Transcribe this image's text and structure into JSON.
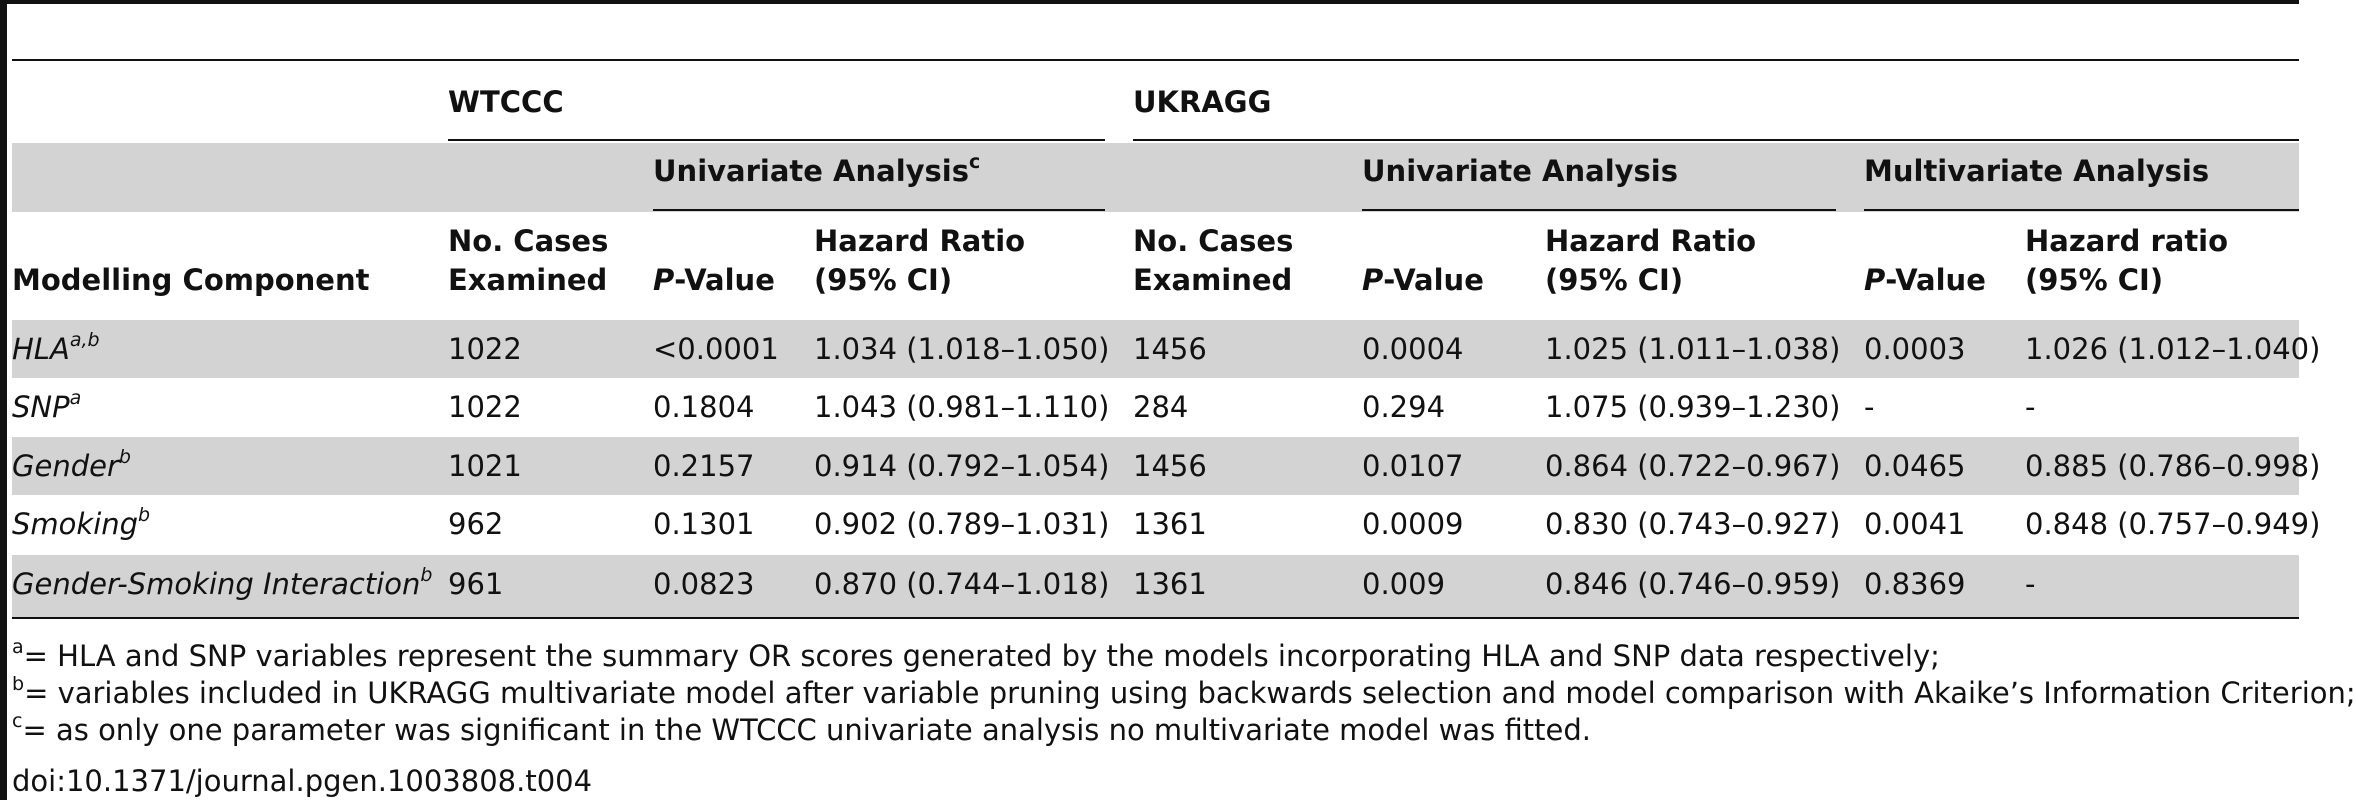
{
  "groups": {
    "wtccc": "WTCCC",
    "ukragg": "UKRAGG"
  },
  "subgroups": {
    "wtccc_univariate": "Univariate Analysis",
    "wtccc_univariate_sup": "c",
    "ukragg_univariate": "Univariate Analysis",
    "ukragg_multivariate": "Multivariate Analysis"
  },
  "headers": {
    "component": "Modelling Component",
    "cases_1": "No. Cases",
    "cases_2": "Examined",
    "p_italic": "P",
    "p_rest": "-Value",
    "hr_1": "Hazard Ratio",
    "hr_2": "(95% CI)",
    "hr_lower_1": "Hazard ratio",
    "hr_lower_2": "(95% CI)"
  },
  "rows": [
    {
      "component": "HLA",
      "sup": "a,b",
      "wt_cases": "1022",
      "wt_p": "<0.0001",
      "wt_hr": "1.034 (1.018–1.050)",
      "uk_cases": "1456",
      "uk_p": "0.0004",
      "uk_hr": "1.025 (1.011–1.038)",
      "mv_p": "0.0003",
      "mv_hr": "1.026 (1.012–1.040)"
    },
    {
      "component": "SNP",
      "sup": "a",
      "wt_cases": "1022",
      "wt_p": "0.1804",
      "wt_hr": "1.043 (0.981–1.110)",
      "uk_cases": "284",
      "uk_p": "0.294",
      "uk_hr": "1.075 (0.939–1.230)",
      "mv_p": "-",
      "mv_hr": "-"
    },
    {
      "component": "Gender",
      "sup": "b",
      "wt_cases": "1021",
      "wt_p": "0.2157",
      "wt_hr": "0.914 (0.792–1.054)",
      "uk_cases": "1456",
      "uk_p": "0.0107",
      "uk_hr": "0.864 (0.722–0.967)",
      "mv_p": "0.0465",
      "mv_hr": "0.885 (0.786–0.998)"
    },
    {
      "component": "Smoking",
      "sup": "b",
      "wt_cases": "962",
      "wt_p": "0.1301",
      "wt_hr": "0.902 (0.789–1.031)",
      "uk_cases": "1361",
      "uk_p": "0.0009",
      "uk_hr": "0.830 (0.743–0.927)",
      "mv_p": "0.0041",
      "mv_hr": "0.848 (0.757–0.949)"
    },
    {
      "component": "Gender-Smoking Interaction",
      "sup": "b",
      "wt_cases": "961",
      "wt_p": "0.0823",
      "wt_hr": "0.870 (0.744–1.018)",
      "uk_cases": "1361",
      "uk_p": "0.009",
      "uk_hr": "0.846 (0.746–0.959)",
      "mv_p": "0.8369",
      "mv_hr": "-"
    }
  ],
  "footnotes": [
    {
      "mark": "a",
      "text": "= HLA and SNP variables represent the summary OR scores generated by the models incorporating HLA and SNP data respectively;"
    },
    {
      "mark": "b",
      "text": "= variables included in UKRAGG multivariate model after variable pruning using backwards selection and model comparison with Akaike’s Information Criterion;"
    },
    {
      "mark": "c",
      "text": "= as only one parameter was significant in the WTCCC univariate analysis no multivariate model was fitted."
    }
  ],
  "doi": "doi:10.1371/journal.pgen.1003808.t004",
  "colors": {
    "band": "#d3d3d3",
    "rule": "#111111"
  }
}
